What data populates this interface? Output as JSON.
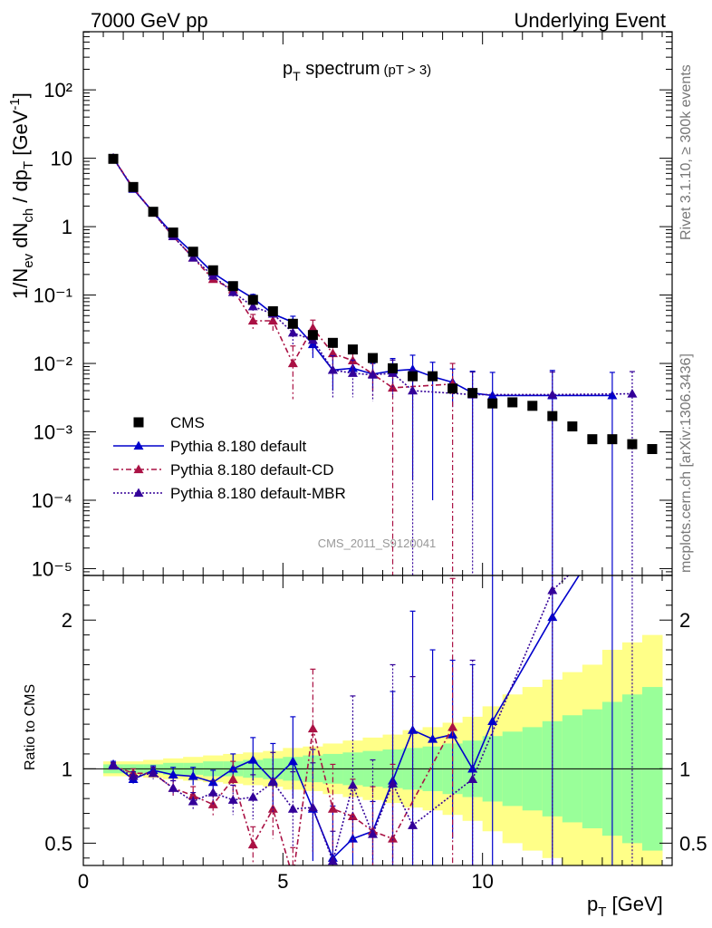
{
  "header": {
    "left": "7000 GeV pp",
    "right": "Underlying Event"
  },
  "side": {
    "top": "Rivet 3.1.10, ≥ 300k events",
    "bottom": "mcplots.cern.ch [arXiv:1306.3436]"
  },
  "watermark": "CMS_2011_S9120041",
  "plot_title": {
    "main": "p",
    "sub": "T",
    "rest": " spectrum",
    "cut": "(pT >  3)"
  },
  "axes": {
    "ylabel_parts": [
      "1/N",
      "ev",
      " dN",
      "ch",
      " / dp",
      "T",
      " [GeV",
      "-1",
      "]"
    ],
    "ratio_ylabel": "Ratio to CMS",
    "xlabel_main": "p",
    "xlabel_sub": "T",
    "xlabel_unit": " [GeV]"
  },
  "colors": {
    "cms": "#000000",
    "default": "#0000cc",
    "cd": "#aa1144",
    "mbr": "#330099",
    "band_inner": "#99ff99",
    "band_outer": "#ffff88"
  },
  "chart_data": {
    "type": "scatter",
    "x_range": [
      0,
      14.75
    ],
    "main_y_log_range": [
      -5.1,
      2.85
    ],
    "ratio_y_range": [
      0.35,
      2.3
    ],
    "x_ticks": [
      "0",
      "5",
      "10"
    ],
    "x_tick_values": [
      0,
      5,
      10
    ],
    "y_ticks": [
      "10⁻⁵",
      "10⁻⁴",
      "10⁻³",
      "10⁻²",
      "10⁻¹",
      "1",
      "10",
      "10²"
    ],
    "y_tick_exps": [
      -5,
      -4,
      -3,
      -2,
      -1,
      0,
      1,
      2
    ],
    "ratio_ticks": [
      "0.5",
      "1",
      "2"
    ],
    "ratio_tick_values": [
      0.5,
      1,
      2
    ],
    "legend": [
      "CMS",
      "Pythia 8.180 default",
      "Pythia 8.180 default-CD",
      "Pythia 8.180 default-MBR"
    ],
    "cms": {
      "x": [
        0.75,
        1.25,
        1.75,
        2.25,
        2.75,
        3.25,
        3.75,
        4.25,
        4.75,
        5.25,
        5.75,
        6.25,
        6.75,
        7.25,
        7.75,
        8.25,
        8.75,
        9.25,
        9.75,
        10.25,
        10.75,
        11.25,
        11.75,
        12.25,
        12.75,
        13.25,
        13.75,
        14.25
      ],
      "y": [
        9.8,
        3.8,
        1.65,
        0.82,
        0.43,
        0.23,
        0.135,
        0.085,
        0.058,
        0.038,
        0.026,
        0.02,
        0.016,
        0.012,
        0.0085,
        0.0065,
        0.0065,
        0.0043,
        0.0037,
        0.0026,
        0.0027,
        0.0024,
        0.0017,
        0.0012,
        0.00078,
        0.00078,
        0.00066,
        0.00056
      ]
    },
    "series": [
      {
        "name": "Pythia 8.180 default",
        "x": [
          0.75,
          1.25,
          1.75,
          2.25,
          2.75,
          3.25,
          3.75,
          4.25,
          4.75,
          5.25,
          5.75,
          6.25,
          6.75,
          7.25,
          7.75,
          8.25,
          8.75,
          9.25,
          9.75,
          10.25,
          11.75,
          13.25
        ],
        "y": [
          10.1,
          3.55,
          1.63,
          0.77,
          0.41,
          0.21,
          0.135,
          0.09,
          0.053,
          0.04,
          0.019,
          0.008,
          0.0085,
          0.007,
          0.0078,
          0.0082,
          0.0064,
          0.0053,
          0.0037,
          0.0034,
          0.0034,
          0.0034
        ],
        "err_lo": [
          0.3,
          0.15,
          0.08,
          0.05,
          0.03,
          0.02,
          0.015,
          0.012,
          0.01,
          0.009,
          0.007,
          0.004,
          0.002,
          0.003,
          0.004,
          0.008,
          0.0063,
          0.003,
          0.0036,
          0.0034,
          0.0034,
          0.0034
        ],
        "err_hi": [
          0.3,
          0.15,
          0.08,
          0.05,
          0.03,
          0.02,
          0.015,
          0.012,
          0.01,
          0.009,
          0.008,
          0.006,
          0.002,
          0.003,
          0.004,
          0.005,
          0.004,
          0.003,
          0.004,
          0.004,
          0.0045,
          0.004
        ],
        "ratio": [
          1.03,
          0.93,
          0.99,
          0.96,
          0.95,
          0.91,
          1.0,
          1.06,
          0.92,
          1.05,
          0.73,
          0.4,
          0.53,
          0.58,
          0.92,
          1.26,
          1.2,
          1.23,
          1.0,
          1.32,
          2.02,
          2.65
        ],
        "ratio_err_lo": [
          0.02,
          0.03,
          0.03,
          0.05,
          0.06,
          0.08,
          0.1,
          0.14,
          0.2,
          0.25,
          0.35,
          0.25,
          0.2,
          0.25,
          0.6,
          1.2,
          1.0,
          0.7,
          0.9,
          1.3,
          2.0,
          2.6
        ],
        "ratio_err_hi": [
          0.02,
          0.03,
          0.03,
          0.05,
          0.06,
          0.08,
          0.1,
          0.15,
          0.25,
          0.3,
          0.4,
          0.35,
          0.15,
          0.2,
          0.6,
          0.8,
          0.6,
          0.5,
          0.7,
          1.0,
          1.5,
          2.0
        ],
        "style": "solid"
      },
      {
        "name": "Pythia 8.180 default-CD",
        "x": [
          0.75,
          1.25,
          1.75,
          2.25,
          2.75,
          3.25,
          3.75,
          4.25,
          4.75,
          5.25,
          5.75,
          6.25,
          6.75,
          7.25,
          7.75,
          9.25
        ],
        "y": [
          10.0,
          3.7,
          1.6,
          0.72,
          0.35,
          0.17,
          0.12,
          0.042,
          0.042,
          0.01,
          0.033,
          0.014,
          0.011,
          0.007,
          0.0044,
          0.005
        ],
        "err_lo": [
          0.3,
          0.15,
          0.08,
          0.05,
          0.03,
          0.02,
          0.015,
          0.01,
          0.012,
          0.007,
          0.01,
          0.006,
          0.004,
          0.004,
          0.0044,
          0.005
        ],
        "err_hi": [
          0.3,
          0.15,
          0.08,
          0.05,
          0.03,
          0.02,
          0.015,
          0.01,
          0.012,
          0.008,
          0.01,
          0.006,
          0.004,
          0.004,
          0.004,
          0.005
        ],
        "ratio": [
          1.02,
          0.97,
          0.97,
          0.87,
          0.82,
          0.76,
          0.93,
          0.49,
          0.73,
          0.27,
          1.27,
          0.73,
          0.68,
          0.58,
          0.53,
          1.28
        ],
        "ratio_err_lo": [
          0.02,
          0.03,
          0.04,
          0.05,
          0.06,
          0.08,
          0.12,
          0.12,
          0.2,
          0.2,
          0.4,
          0.3,
          0.25,
          0.3,
          0.53,
          1.28
        ],
        "ratio_err_hi": [
          0.02,
          0.03,
          0.04,
          0.05,
          0.06,
          0.08,
          0.12,
          0.12,
          0.2,
          0.2,
          0.4,
          0.3,
          0.25,
          0.3,
          0.5,
          1.0
        ],
        "style": "dashdot"
      },
      {
        "name": "Pythia 8.180 default-MBR",
        "x": [
          0.75,
          1.25,
          1.75,
          2.25,
          2.75,
          3.25,
          3.75,
          4.25,
          4.75,
          5.25,
          5.75,
          6.25,
          6.75,
          7.25,
          7.75,
          8.25,
          9.75,
          11.75,
          13.75
        ],
        "y": [
          10.0,
          3.6,
          1.6,
          0.72,
          0.35,
          0.19,
          0.11,
          0.068,
          0.053,
          0.028,
          0.022,
          0.008,
          0.0072,
          0.0068,
          0.0072,
          0.004,
          0.0035,
          0.0035,
          0.0036
        ],
        "err_lo": [
          0.3,
          0.15,
          0.08,
          0.05,
          0.03,
          0.02,
          0.015,
          0.012,
          0.01,
          0.009,
          0.008,
          0.005,
          0.004,
          0.004,
          0.004,
          0.004,
          0.0035,
          0.0035,
          0.0036
        ],
        "err_hi": [
          0.3,
          0.15,
          0.08,
          0.05,
          0.03,
          0.02,
          0.015,
          0.012,
          0.01,
          0.009,
          0.008,
          0.005,
          0.004,
          0.004,
          0.004,
          0.004,
          0.004,
          0.004,
          0.004
        ],
        "ratio": [
          1.02,
          0.95,
          0.97,
          0.87,
          0.78,
          0.84,
          0.79,
          0.81,
          0.91,
          0.73,
          0.74,
          0.38,
          0.89,
          0.56,
          0.9,
          0.62,
          0.93,
          2.2,
          2.7
        ],
        "ratio_err_lo": [
          0.02,
          0.03,
          0.04,
          0.05,
          0.06,
          0.08,
          0.1,
          0.15,
          0.2,
          0.25,
          0.3,
          0.2,
          0.4,
          0.3,
          0.6,
          0.62,
          0.93,
          2.2,
          2.7
        ],
        "ratio_err_hi": [
          0.02,
          0.03,
          0.04,
          0.05,
          0.06,
          0.08,
          0.1,
          0.15,
          0.2,
          0.25,
          0.3,
          0.2,
          0.6,
          0.5,
          0.8,
          1.0,
          0.8,
          1.0,
          1.0
        ],
        "style": "dotted"
      }
    ],
    "ratio_band": {
      "edges": [
        0.5,
        1.0,
        1.5,
        2.0,
        2.5,
        3.0,
        3.5,
        4.0,
        4.5,
        5.0,
        5.5,
        6.0,
        6.5,
        7.0,
        7.5,
        8.0,
        8.5,
        9.0,
        9.5,
        10.0,
        10.5,
        11.0,
        11.5,
        12.0,
        12.5,
        13.0,
        13.5,
        14.0,
        14.5
      ],
      "inner": [
        0.03,
        0.03,
        0.03,
        0.04,
        0.04,
        0.05,
        0.05,
        0.06,
        0.07,
        0.08,
        0.09,
        0.1,
        0.11,
        0.12,
        0.13,
        0.14,
        0.15,
        0.17,
        0.19,
        0.22,
        0.25,
        0.28,
        0.32,
        0.36,
        0.4,
        0.45,
        0.5,
        0.55
      ],
      "outer": [
        0.05,
        0.05,
        0.06,
        0.07,
        0.08,
        0.09,
        0.1,
        0.11,
        0.12,
        0.14,
        0.15,
        0.17,
        0.19,
        0.21,
        0.23,
        0.26,
        0.28,
        0.31,
        0.35,
        0.42,
        0.5,
        0.55,
        0.6,
        0.65,
        0.7,
        0.8,
        0.85,
        0.9
      ]
    }
  }
}
